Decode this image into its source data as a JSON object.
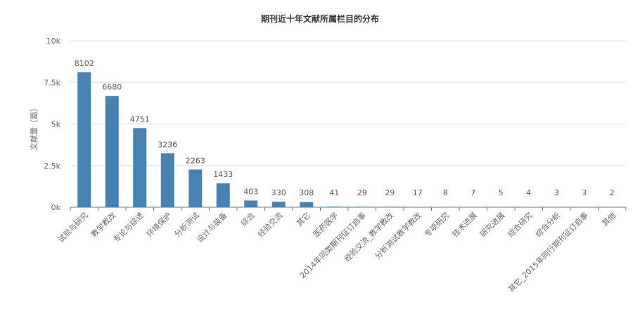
{
  "chart_data": {
    "type": "bar",
    "title": "期刊近十年文献所属栏目的分布",
    "xlabel": "",
    "ylabel": "文献量（篇）",
    "ylim": [
      0,
      10000
    ],
    "yticks": [
      0,
      2500,
      5000,
      7500,
      10000
    ],
    "ytick_labels": [
      "0k",
      "2.5k",
      "5k",
      "7.5k",
      "10k"
    ],
    "grid": true,
    "bar_color": "#4682b4",
    "categories": [
      "试验与研究",
      "教学教改",
      "专论与综述",
      "环境保护",
      "分析测试",
      "设计与装备",
      "综合",
      "经验交流",
      "其它",
      "医药医学",
      "2014年同类期刊征订启事",
      "经验交流_教学教改",
      "分析测试教学教改",
      "专项研究",
      "技术进展",
      "研究进展",
      "综合研究",
      "综合分析",
      "其它_2015年同行期刊征订启事",
      "其他"
    ],
    "values": [
      8102,
      6680,
      4751,
      3236,
      2263,
      1433,
      403,
      330,
      308,
      41,
      29,
      29,
      17,
      8,
      7,
      5,
      4,
      3,
      3,
      2
    ]
  }
}
